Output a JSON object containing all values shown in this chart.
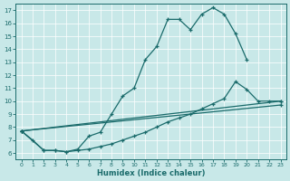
{
  "bg_color": "#c8e8e8",
  "grid_color": "#ffffff",
  "line_color": "#1a6b6b",
  "xlabel": "Humidex (Indice chaleur)",
  "xticks": [
    0,
    1,
    2,
    3,
    4,
    5,
    6,
    7,
    8,
    9,
    10,
    11,
    12,
    13,
    14,
    15,
    16,
    17,
    18,
    19,
    20,
    21,
    22,
    23
  ],
  "yticks": [
    6,
    7,
    8,
    9,
    10,
    11,
    12,
    13,
    14,
    15,
    16,
    17
  ],
  "xlim": [
    -0.5,
    23.5
  ],
  "ylim": [
    5.5,
    17.5
  ],
  "curve1_x": [
    0,
    1,
    2,
    3,
    4,
    5,
    6,
    7,
    8,
    9,
    10,
    11,
    12,
    13,
    14,
    15,
    16,
    17,
    18,
    19,
    20
  ],
  "curve1_y": [
    7.7,
    7.0,
    6.2,
    6.2,
    6.1,
    6.3,
    7.3,
    7.6,
    9.0,
    10.4,
    11.0,
    13.2,
    14.2,
    16.3,
    16.3,
    15.5,
    16.7,
    17.2,
    16.7,
    15.2,
    13.2
  ],
  "curve2_x": [
    0,
    2,
    3,
    4,
    5,
    6,
    7,
    8,
    9,
    10,
    11,
    12,
    13,
    14,
    15,
    16,
    17,
    18,
    19,
    20,
    21,
    22,
    23
  ],
  "curve2_y": [
    7.7,
    6.2,
    6.2,
    6.1,
    6.2,
    6.3,
    6.5,
    6.7,
    7.0,
    7.3,
    7.6,
    8.0,
    8.4,
    8.7,
    9.0,
    9.4,
    9.8,
    10.2,
    11.5,
    10.9,
    10.0,
    10.0,
    10.0
  ],
  "curve3_x": [
    0,
    23
  ],
  "curve3_y": [
    7.7,
    10.0
  ],
  "curve4_x": [
    0,
    23
  ],
  "curve4_y": [
    7.7,
    9.7
  ]
}
